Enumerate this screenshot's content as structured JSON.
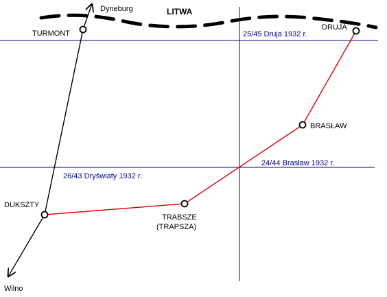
{
  "map": {
    "country_label": "LITWA",
    "towns": {
      "turmont": "TURMONT",
      "dukszty": "DUKSZTY",
      "trabsze": "TRABSZE",
      "trabsze_alt": "(TRAPSZA)",
      "braslaw": "BRASŁAW",
      "druja": "DRUJA"
    },
    "directions": {
      "dyneburg": "Dyneburg",
      "wilno": "Wilno"
    },
    "grid_labels": {
      "druja_sheet": "25/45 Druja 1932 r.",
      "drysviaty_sheet": "26/43 Dryświaty 1932 r.",
      "braslaw_sheet": "24/44 Brasław 1932 r."
    },
    "colors": {
      "route": "#e00000",
      "railway": "#000000",
      "grid": "#00008b",
      "border": "#000000"
    }
  }
}
